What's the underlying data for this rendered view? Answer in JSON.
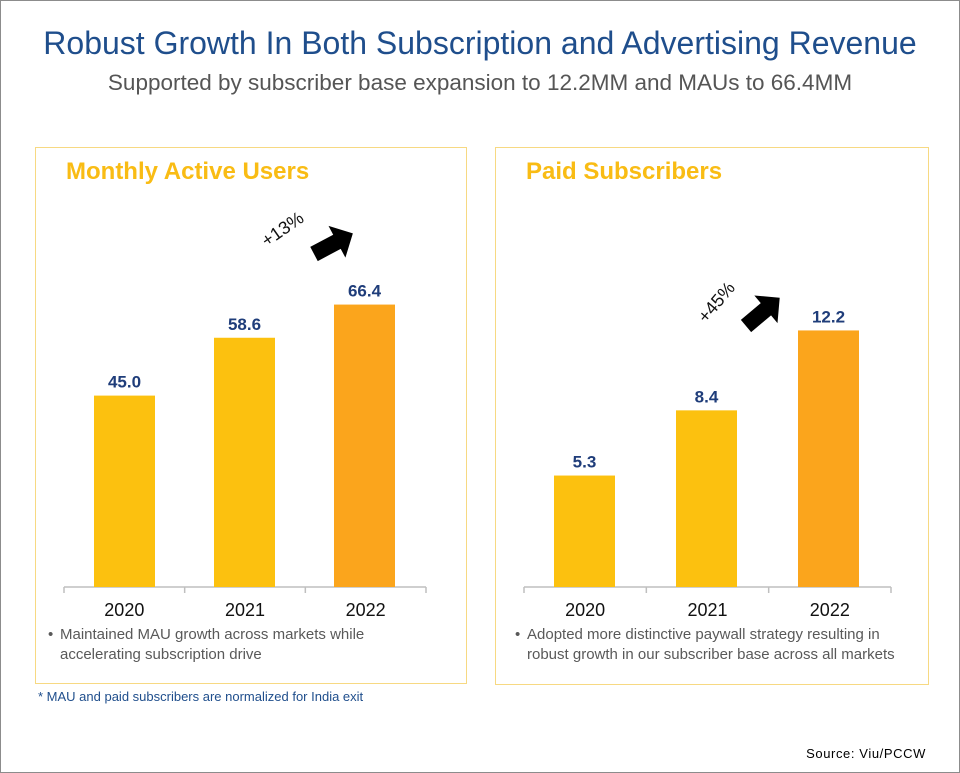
{
  "header": {
    "title": "Robust Growth In Both Subscription and Advertising Revenue",
    "subtitle": "Supported by subscriber base expansion to 12.2MM and MAUs to 66.4MM"
  },
  "colors": {
    "title": "#1f4e8c",
    "panel_title": "#f9bc14",
    "bar": "#fcc10f",
    "bar_highlight": "#fba51c",
    "value_label": "#1f3d7a",
    "panel_border": "#f7d982"
  },
  "panels": [
    {
      "title": "Monthly Active Users",
      "growth_label": "+13%",
      "arrow_icon": "growth-arrow-icon",
      "note": "Maintained MAU growth across markets while accelerating subscription drive",
      "bullet": "•"
    },
    {
      "title": "Paid Subscribers",
      "growth_label": "+45%",
      "arrow_icon": "growth-arrow-icon",
      "note": "Adopted more distinctive paywall strategy resulting in robust growth in our subscriber base across all markets",
      "bullet": "•"
    }
  ],
  "chart_data": [
    {
      "type": "bar",
      "title": "Monthly Active Users",
      "categories": [
        "2020",
        "2021",
        "2022"
      ],
      "values": [
        45.0,
        58.6,
        66.4
      ],
      "value_labels": [
        "45.0",
        "58.6",
        "66.4"
      ],
      "ylim": [
        0,
        75
      ],
      "grid": false,
      "highlight_index": 2,
      "annotation": "+13%"
    },
    {
      "type": "bar",
      "title": "Paid Subscribers",
      "categories": [
        "2020",
        "2021",
        "2022"
      ],
      "values": [
        5.3,
        8.4,
        12.2
      ],
      "value_labels": [
        "5.3",
        "8.4",
        "12.2"
      ],
      "ylim": [
        0,
        13.6
      ],
      "grid": false,
      "highlight_index": 2,
      "annotation": "+45%"
    }
  ],
  "footnote": "* MAU and paid subscribers are normalized for India exit",
  "source": "Source: Viu/PCCW"
}
